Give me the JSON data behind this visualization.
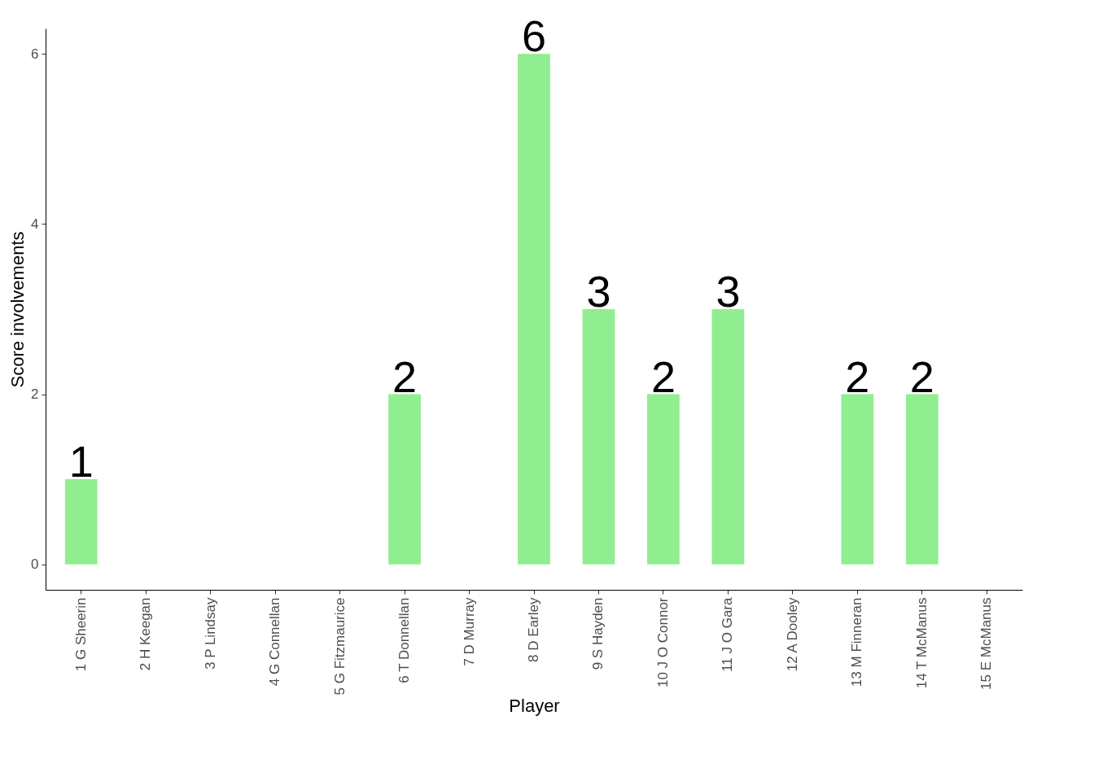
{
  "chart_data": {
    "type": "bar",
    "xlabel": "Player",
    "ylabel": "Score involvements",
    "categories": [
      "1 G Sheerin",
      "2 H Keegan",
      "3 P Lindsay",
      "4 G Connellan",
      "5 G Fitzmaurice",
      "6 T Donnellan",
      "7 D Murray",
      "8 D Earley",
      "9 S Hayden",
      "10 J O Connor",
      "11 J O Gara",
      "12 A Dooley",
      "13 M Finneran",
      "14 T McManus",
      "15 E McManus"
    ],
    "values": [
      1,
      0,
      0,
      0,
      0,
      2,
      0,
      6,
      3,
      2,
      3,
      0,
      2,
      2,
      0
    ],
    "value_labels": [
      "1",
      null,
      null,
      null,
      null,
      "2",
      null,
      "6",
      "3",
      "2",
      "3",
      null,
      "2",
      "2",
      null
    ],
    "color": "#90ee90",
    "ylim": [
      -0.3,
      6.3
    ],
    "yticks": [
      0,
      2,
      4,
      6
    ],
    "grid": false
  }
}
